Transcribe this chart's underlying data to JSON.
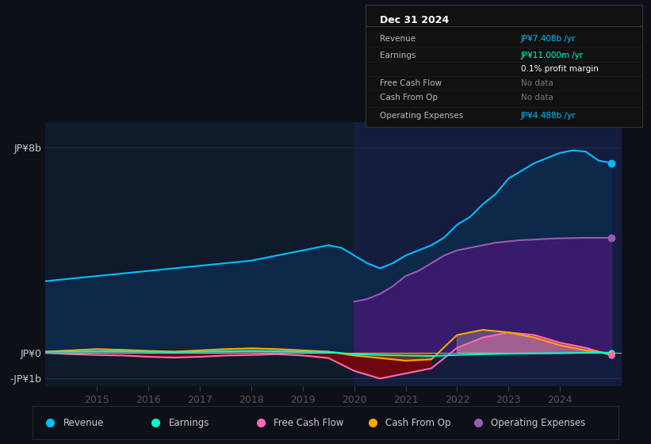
{
  "bg_color": "#0d1117",
  "plot_bg_color": "#0d1b2a",
  "info_box": {
    "title": "Dec 31 2024",
    "rows": [
      {
        "label": "Revenue",
        "value": "JP¥7.408b /yr",
        "value_color": "#00bfff"
      },
      {
        "label": "Earnings",
        "value": "JP¥11.000m /yr",
        "value_color": "#00ffcc"
      },
      {
        "label": "",
        "value": "0.1% profit margin",
        "value_color": "#ffffff"
      },
      {
        "label": "Free Cash Flow",
        "value": "No data",
        "value_color": "#777777"
      },
      {
        "label": "Cash From Op",
        "value": "No data",
        "value_color": "#777777"
      },
      {
        "label": "Operating Expenses",
        "value": "JP¥4.488b /yr",
        "value_color": "#00bfff"
      }
    ]
  },
  "ylim": [
    -1.3,
    9.0
  ],
  "ytick_labels": [
    "-JP¥1b",
    "JP¥0",
    "JP¥8b"
  ],
  "ytick_values": [
    -1.0,
    0.0,
    8.0
  ],
  "xtick_labels": [
    "2015",
    "2016",
    "2017",
    "2018",
    "2019",
    "2020",
    "2021",
    "2022",
    "2023",
    "2024"
  ],
  "xtick_positions": [
    2015,
    2016,
    2017,
    2018,
    2019,
    2020,
    2021,
    2022,
    2023,
    2024
  ],
  "legend_items": [
    {
      "label": "Revenue",
      "color": "#00bfff"
    },
    {
      "label": "Earnings",
      "color": "#00ffcc"
    },
    {
      "label": "Free Cash Flow",
      "color": "#ff69b4"
    },
    {
      "label": "Cash From Op",
      "color": "#ffa500"
    },
    {
      "label": "Operating Expenses",
      "color": "#9b59b6"
    }
  ],
  "highlight_start": 2020.0,
  "highlight_color": "#1a2050",
  "xmin": 2014.0,
  "xmax": 2025.2,
  "revenue": {
    "x": [
      2014.0,
      2014.5,
      2015.0,
      2015.5,
      2016.0,
      2016.5,
      2017.0,
      2017.5,
      2018.0,
      2018.5,
      2019.0,
      2019.25,
      2019.5,
      2019.75,
      2020.0,
      2020.25,
      2020.5,
      2020.75,
      2021.0,
      2021.25,
      2021.5,
      2021.75,
      2022.0,
      2022.25,
      2022.5,
      2022.75,
      2023.0,
      2023.25,
      2023.5,
      2023.75,
      2024.0,
      2024.25,
      2024.5,
      2024.75,
      2025.0
    ],
    "y": [
      2.8,
      2.9,
      3.0,
      3.1,
      3.2,
      3.3,
      3.4,
      3.5,
      3.6,
      3.8,
      4.0,
      4.1,
      4.2,
      4.1,
      3.8,
      3.5,
      3.3,
      3.5,
      3.8,
      4.0,
      4.2,
      4.5,
      5.0,
      5.3,
      5.8,
      6.2,
      6.8,
      7.1,
      7.4,
      7.6,
      7.8,
      7.9,
      7.85,
      7.5,
      7.408
    ],
    "color": "#00bfff",
    "fill_color": "#0d2a4a",
    "linewidth": 1.5
  },
  "operating_expenses": {
    "x": [
      2020.0,
      2020.25,
      2020.5,
      2020.75,
      2021.0,
      2021.25,
      2021.5,
      2021.75,
      2022.0,
      2022.25,
      2022.5,
      2022.75,
      2023.0,
      2023.25,
      2023.5,
      2023.75,
      2024.0,
      2024.25,
      2024.5,
      2024.75,
      2025.0
    ],
    "y": [
      2.0,
      2.1,
      2.3,
      2.6,
      3.0,
      3.2,
      3.5,
      3.8,
      4.0,
      4.1,
      4.2,
      4.3,
      4.35,
      4.4,
      4.42,
      4.45,
      4.47,
      4.48,
      4.488,
      4.488,
      4.488
    ],
    "color": "#9b59b6",
    "fill_color": "#3d1a6e",
    "linewidth": 1.5
  },
  "earnings": {
    "x": [
      2014.0,
      2014.5,
      2015.0,
      2015.5,
      2016.0,
      2016.5,
      2017.0,
      2017.5,
      2018.0,
      2018.5,
      2019.0,
      2019.5,
      2020.0,
      2020.5,
      2021.0,
      2021.5,
      2022.0,
      2022.5,
      2023.0,
      2023.5,
      2024.0,
      2024.5,
      2024.75,
      2025.0
    ],
    "y": [
      0.05,
      0.05,
      0.06,
      0.06,
      0.05,
      0.04,
      0.05,
      0.06,
      0.07,
      0.06,
      0.05,
      0.04,
      -0.05,
      -0.08,
      -0.1,
      -0.12,
      -0.08,
      -0.05,
      -0.03,
      -0.02,
      -0.01,
      0.01,
      0.011,
      0.011
    ],
    "color": "#00ffcc",
    "linewidth": 1.5
  },
  "free_cash_flow": {
    "x": [
      2014.0,
      2014.5,
      2015.0,
      2015.5,
      2016.0,
      2016.5,
      2017.0,
      2017.5,
      2018.0,
      2018.5,
      2019.0,
      2019.5,
      2020.0,
      2020.5,
      2021.0,
      2021.5,
      2022.0,
      2022.5,
      2023.0,
      2023.5,
      2024.0,
      2024.5,
      2024.75,
      2025.0
    ],
    "y": [
      0.0,
      -0.05,
      -0.08,
      -0.1,
      -0.15,
      -0.18,
      -0.15,
      -0.1,
      -0.08,
      -0.05,
      -0.1,
      -0.2,
      -0.7,
      -1.0,
      -0.8,
      -0.6,
      0.2,
      0.6,
      0.8,
      0.7,
      0.4,
      0.2,
      0.05,
      -0.1
    ],
    "color": "#ff69b4",
    "fill_color_pos": "#cc4488",
    "fill_color_neg": "#8b0000",
    "linewidth": 1.5
  },
  "cash_from_op": {
    "x": [
      2014.0,
      2014.5,
      2015.0,
      2015.5,
      2016.0,
      2016.5,
      2017.0,
      2017.5,
      2018.0,
      2018.5,
      2019.0,
      2019.5,
      2020.0,
      2020.5,
      2021.0,
      2021.5,
      2022.0,
      2022.5,
      2023.0,
      2023.5,
      2024.0,
      2024.5,
      2024.75,
      2025.0
    ],
    "y": [
      0.05,
      0.1,
      0.15,
      0.12,
      0.08,
      0.05,
      0.1,
      0.15,
      0.18,
      0.15,
      0.1,
      0.05,
      -0.1,
      -0.2,
      -0.3,
      -0.25,
      0.7,
      0.9,
      0.8,
      0.6,
      0.3,
      0.1,
      0.05,
      -0.05
    ],
    "color": "#ffa500",
    "fill_color_pos": "#aaaaaa",
    "fill_color_neg": "#885500",
    "linewidth": 1.5
  }
}
